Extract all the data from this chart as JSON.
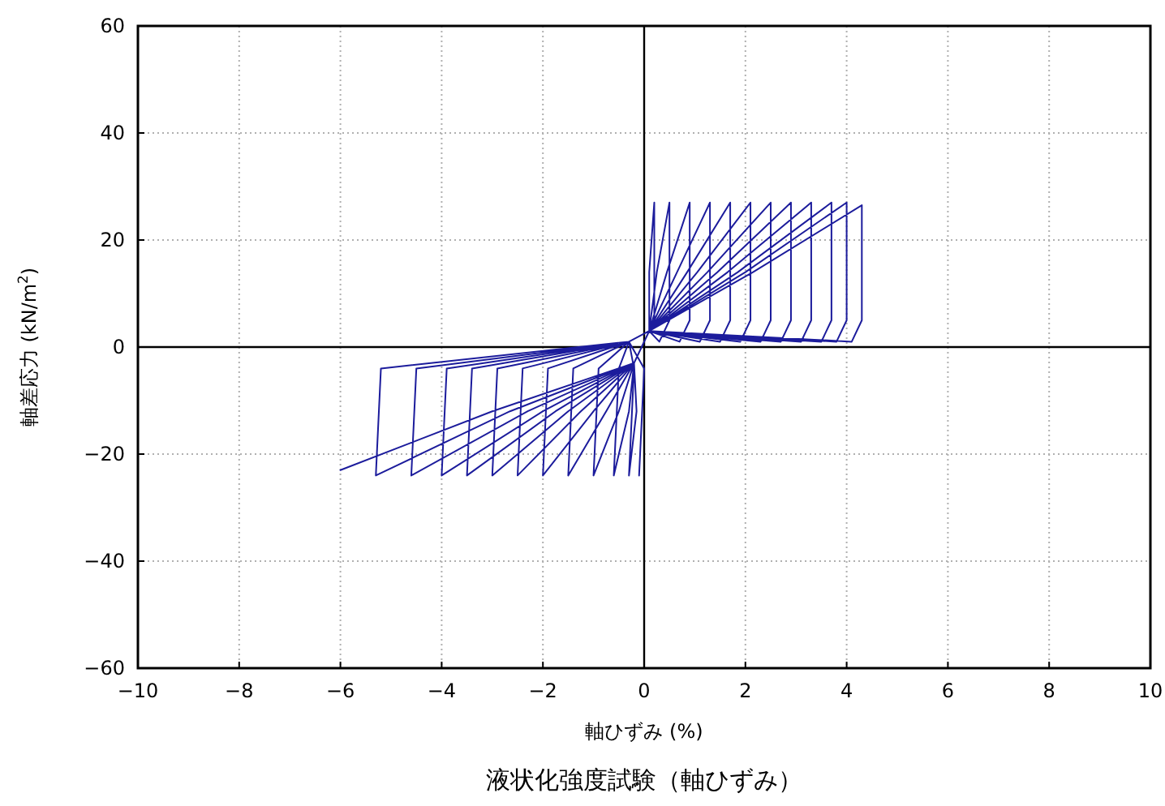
{
  "chart_data": {
    "type": "line",
    "title": "液状化強度試験（軸ひずみ）",
    "xlabel": "軸ひずみ (%)",
    "ylabel": "軸差応力 (kN/m$^{2}$)",
    "xlim": [
      -10,
      10
    ],
    "xticks": [
      -10,
      -8,
      -6,
      -4,
      -2,
      0,
      2,
      4,
      6,
      8,
      10
    ],
    "ylim": [
      -60,
      60
    ],
    "yticks": [
      -60,
      -40,
      -20,
      0,
      20,
      40,
      60
    ],
    "grid": true,
    "marker": "none",
    "line_style": "solid",
    "series": [
      {
        "color": "#1c1c9c",
        "x": [
          -0.1,
          0,
          -0.3,
          0.1,
          0,
          0.2,
          0.2,
          0.1,
          0.1,
          -0.2,
          -0.15,
          -0.3,
          -0.2,
          -0.3,
          0.1,
          0.3,
          0.5,
          0.5,
          0.25,
          0.1,
          -0.2,
          -0.3,
          -0.6,
          -0.5,
          -0.3,
          0.1,
          0.7,
          0.9,
          0.9,
          0.45,
          0.1,
          -0.2,
          -0.5,
          -1.0,
          -0.9,
          -0.3,
          0.1,
          1.1,
          1.3,
          1.3,
          0.65,
          0.1,
          -0.2,
          -0.75,
          -1.5,
          -1.4,
          -0.3,
          0.1,
          1.5,
          1.7,
          1.7,
          0.85,
          0.1,
          -0.2,
          -1.0,
          -2.0,
          -1.9,
          -0.3,
          0.1,
          1.9,
          2.1,
          2.1,
          1.05,
          0.1,
          -0.2,
          -1.25,
          -2.5,
          -2.4,
          -0.3,
          0.1,
          2.3,
          2.5,
          2.5,
          1.25,
          0.1,
          -0.2,
          -1.5,
          -3.0,
          -2.9,
          -0.3,
          0.1,
          2.7,
          2.9,
          2.9,
          1.45,
          0.1,
          -0.2,
          -1.75,
          -3.5,
          -3.4,
          -0.3,
          0.1,
          3.1,
          3.3,
          3.3,
          1.65,
          0.1,
          -0.2,
          -2.0,
          -4.0,
          -3.9,
          -0.3,
          0.1,
          3.5,
          3.7,
          3.7,
          1.85,
          0.1,
          -0.2,
          -2.3,
          -4.6,
          -4.5,
          -0.3,
          0.1,
          3.8,
          4.0,
          4.0,
          2.0,
          0.1,
          -0.2,
          -2.65,
          -5.3,
          -5.2,
          -0.3,
          0.1,
          4.1,
          4.3,
          4.3,
          2.15,
          0.1,
          -0.2,
          -3.0,
          -6.0
        ],
        "values": [
          -24,
          -4,
          1,
          3,
          1,
          5,
          27,
          14,
          3,
          -3,
          -12,
          -24,
          -4,
          1,
          3,
          1,
          5,
          27,
          14,
          3,
          -3,
          -12,
          -24,
          -4,
          1,
          3,
          1,
          5,
          27,
          14,
          3,
          -3,
          -12,
          -24,
          -4,
          1,
          3,
          1,
          5,
          27,
          14,
          3,
          -3,
          -12,
          -24,
          -4,
          1,
          3,
          1,
          5,
          27,
          14,
          3,
          -3,
          -12,
          -24,
          -4,
          1,
          3,
          1,
          5,
          27,
          14,
          3,
          -3,
          -12,
          -24,
          -4,
          1,
          3,
          1,
          5,
          27,
          14,
          3,
          -3,
          -12,
          -24,
          -4,
          1,
          3,
          1,
          5,
          27,
          14,
          3,
          -3,
          -12,
          -24,
          -4,
          1,
          3,
          1,
          5,
          27,
          14,
          3,
          -3,
          -12,
          -24,
          -4,
          1,
          3,
          1,
          5,
          27,
          14,
          3,
          -3,
          -12,
          -24,
          -4,
          1,
          3,
          1,
          5,
          27,
          14,
          3,
          -3,
          -12,
          -24,
          -4,
          1,
          3,
          1,
          5,
          26.5,
          14,
          3,
          -3,
          -12,
          -23
        ]
      }
    ]
  }
}
